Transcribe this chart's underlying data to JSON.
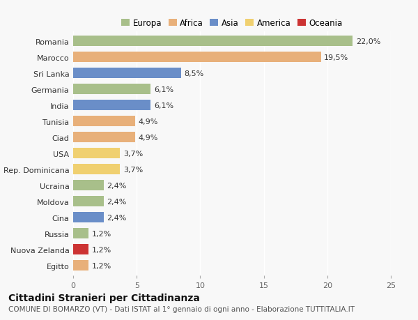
{
  "countries": [
    "Romania",
    "Marocco",
    "Sri Lanka",
    "Germania",
    "India",
    "Tunisia",
    "Ciad",
    "USA",
    "Rep. Dominicana",
    "Ucraina",
    "Moldova",
    "Cina",
    "Russia",
    "Nuova Zelanda",
    "Egitto"
  ],
  "values": [
    22.0,
    19.5,
    8.5,
    6.1,
    6.1,
    4.9,
    4.9,
    3.7,
    3.7,
    2.4,
    2.4,
    2.4,
    1.2,
    1.2,
    1.2
  ],
  "labels": [
    "22,0%",
    "19,5%",
    "8,5%",
    "6,1%",
    "6,1%",
    "4,9%",
    "4,9%",
    "3,7%",
    "3,7%",
    "2,4%",
    "2,4%",
    "2,4%",
    "1,2%",
    "1,2%",
    "1,2%"
  ],
  "colors": [
    "#a8bf8a",
    "#e8b07a",
    "#6a8ec8",
    "#a8bf8a",
    "#6a8ec8",
    "#e8b07a",
    "#e8b07a",
    "#f0d070",
    "#f0d070",
    "#a8bf8a",
    "#a8bf8a",
    "#6a8ec8",
    "#a8bf8a",
    "#cc3333",
    "#e8b07a"
  ],
  "legend_labels": [
    "Europa",
    "Africa",
    "Asia",
    "America",
    "Oceania"
  ],
  "legend_colors": [
    "#a8bf8a",
    "#e8b07a",
    "#6a8ec8",
    "#f0d070",
    "#cc3333"
  ],
  "title": "Cittadini Stranieri per Cittadinanza",
  "subtitle": "COMUNE DI BOMARZO (VT) - Dati ISTAT al 1° gennaio di ogni anno - Elaborazione TUTTITALIA.IT",
  "xlim": [
    0,
    25
  ],
  "xticks": [
    0,
    5,
    10,
    15,
    20,
    25
  ],
  "bg_color": "#f8f8f8",
  "bar_height": 0.65,
  "label_fontsize": 8,
  "ytick_fontsize": 8,
  "xtick_fontsize": 8,
  "title_fontsize": 10,
  "subtitle_fontsize": 7.5
}
